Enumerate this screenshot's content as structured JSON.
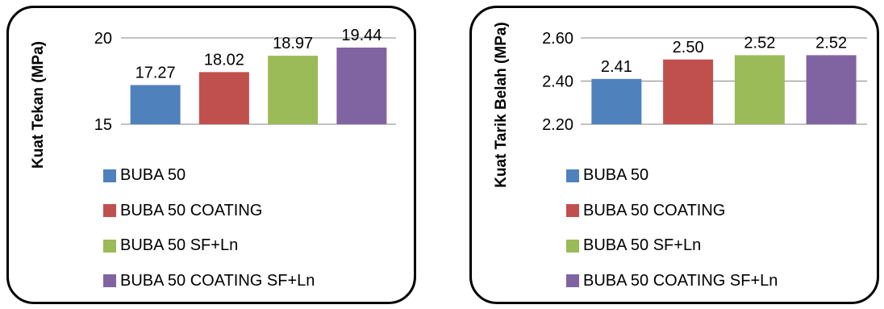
{
  "chart_data": [
    {
      "type": "bar",
      "categories": [
        "BUBA 50",
        "BUBA 50 COATING",
        "BUBA 50 SF+Ln",
        "BUBA 50 COATING SF+Ln"
      ],
      "values": [
        17.27,
        18.02,
        18.97,
        19.44
      ],
      "value_labels": [
        "17.27",
        "18.02",
        "18.97",
        "19.44"
      ],
      "ylabel": "Kuat Tekan (MPa)",
      "ylim": [
        15,
        20
      ],
      "yticks": [
        15,
        20
      ],
      "ytick_labels": [
        "15",
        "20"
      ],
      "grid": true,
      "legend_position": "bottom-left",
      "colors": [
        "#4f81bd",
        "#c0504d",
        "#9bbb59",
        "#8064a2"
      ]
    },
    {
      "type": "bar",
      "categories": [
        "BUBA 50",
        "BUBA 50 COATING",
        "BUBA 50 SF+Ln",
        "BUBA 50 COATING SF+Ln"
      ],
      "values": [
        2.41,
        2.5,
        2.52,
        2.52
      ],
      "value_labels": [
        "2.41",
        "2.50",
        "2.52",
        "2.52"
      ],
      "ylabel": "Kuat Tarik Belah (MPa)",
      "ylim": [
        2.2,
        2.6
      ],
      "yticks": [
        2.2,
        2.4,
        2.6
      ],
      "ytick_labels": [
        "2.20",
        "2.40",
        "2.60"
      ],
      "grid": true,
      "legend_position": "bottom-left",
      "colors": [
        "#4f81bd",
        "#c0504d",
        "#9bbb59",
        "#8064a2"
      ]
    }
  ]
}
